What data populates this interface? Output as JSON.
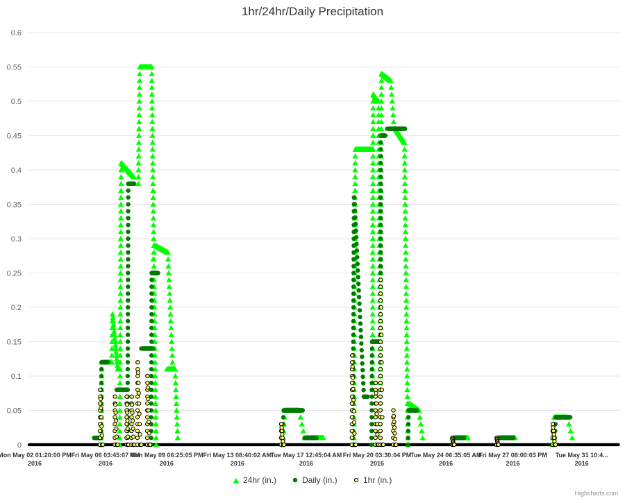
{
  "chart_data": {
    "type": "scatter",
    "title": "1hr/24hr/Daily Precipitation",
    "xlabel": "",
    "ylabel": "",
    "ylim": [
      0,
      0.6
    ],
    "y_ticks": [
      "0",
      "0.05",
      "0.1",
      "0.15",
      "0.2",
      "0.25",
      "0.3",
      "0.35",
      "0.4",
      "0.45",
      "0.5",
      "0.55",
      "0.6"
    ],
    "x_range": [
      0,
      30
    ],
    "x_ticks": [
      {
        "day": 0.0,
        "line1": "Mon May 02 01:20:00 PM",
        "line2": "2016"
      },
      {
        "day": 3.6,
        "line1": "Fri May 06 03:45:07 AM",
        "line2": "2016"
      },
      {
        "day": 6.7,
        "line1": "Mon May 09 06:25:05 PM",
        "line2": "2016"
      },
      {
        "day": 10.3,
        "line1": "Fri May 13 08:40:02 AM",
        "line2": "2016"
      },
      {
        "day": 13.8,
        "line1": "Tue May 17 12:45:04 AM",
        "line2": "2016"
      },
      {
        "day": 17.4,
        "line1": "Fri May 20 03:30:04 PM",
        "line2": "2016"
      },
      {
        "day": 20.9,
        "line1": "Tue May 24 06:35:05 AM",
        "line2": "2016"
      },
      {
        "day": 24.3,
        "line1": "Fri May 27 08:00:03 PM",
        "line2": "2016"
      },
      {
        "day": 27.8,
        "line1": "Tue May 31 10:4...",
        "line2": "2016"
      }
    ],
    "grid": true,
    "legend_position": "bottom-center",
    "series": [
      {
        "name": "24hr (in.)",
        "marker": "triangle",
        "color": "#00ff00",
        "segments": [
          {
            "x0": 3.65,
            "x1": 4.2,
            "y0": 0.0,
            "peak": 0.12,
            "plateau": 0.12,
            "end": 0.12
          },
          {
            "x0": 4.2,
            "x1": 4.6,
            "y0": 0.12,
            "peak": 0.19,
            "plateau": 0.11,
            "end": 0.11
          },
          {
            "x0": 4.6,
            "x1": 5.55,
            "y0": 0.0,
            "peak": 0.41,
            "plateau": 0.39,
            "end": 0.38
          },
          {
            "x0": 5.55,
            "x1": 6.45,
            "y0": 0.38,
            "peak": 0.55,
            "plateau": 0.55,
            "end": 0.0
          },
          {
            "x0": 6.3,
            "x1": 7.3,
            "y0": 0.27,
            "peak": 0.29,
            "plateau": 0.28,
            "end": 0.11
          },
          {
            "x0": 7.0,
            "x1": 7.55,
            "y0": 0.11,
            "peak": 0.11,
            "plateau": 0.11,
            "end": 0.01
          },
          {
            "x0": 12.9,
            "x1": 14.0,
            "y0": 0.0,
            "peak": 0.05,
            "plateau": 0.05,
            "end": 0.01
          },
          {
            "x0": 14.0,
            "x1": 14.95,
            "y0": 0.01,
            "peak": 0.01,
            "plateau": 0.01,
            "end": 0.01
          },
          {
            "x0": 16.5,
            "x1": 17.45,
            "y0": 0.0,
            "peak": 0.43,
            "plateau": 0.43,
            "end": 0.43
          },
          {
            "x0": 17.45,
            "x1": 17.85,
            "y0": 0.08,
            "peak": 0.51,
            "plateau": 0.5,
            "end": 0.08
          },
          {
            "x0": 17.85,
            "x1": 18.55,
            "y0": 0.1,
            "peak": 0.54,
            "plateau": 0.53,
            "end": 0.46
          },
          {
            "x0": 18.55,
            "x1": 19.25,
            "y0": 0.46,
            "peak": 0.46,
            "plateau": 0.44,
            "end": 0.0
          },
          {
            "x0": 19.25,
            "x1": 20.0,
            "y0": 0.06,
            "peak": 0.06,
            "plateau": 0.05,
            "end": 0.01
          },
          {
            "x0": 21.5,
            "x1": 22.3,
            "y0": 0.01,
            "peak": 0.01,
            "plateau": 0.01,
            "end": 0.01
          },
          {
            "x0": 23.8,
            "x1": 24.7,
            "y0": 0.01,
            "peak": 0.01,
            "plateau": 0.01,
            "end": 0.01
          },
          {
            "x0": 26.6,
            "x1": 27.6,
            "y0": 0.0,
            "peak": 0.04,
            "plateau": 0.04,
            "end": 0.01
          }
        ]
      },
      {
        "name": "Daily (in.)",
        "marker": "circle",
        "color": "#007a00",
        "segments": [
          {
            "x0": 3.3,
            "x1": 3.65,
            "y0": 0.01,
            "peak": 0.01,
            "plateau": 0.01,
            "end": 0.01
          },
          {
            "x0": 3.65,
            "x1": 4.0,
            "y0": 0.0,
            "peak": 0.12,
            "plateau": 0.12,
            "end": 0.12
          },
          {
            "x0": 4.45,
            "x1": 5.0,
            "y0": 0.08,
            "peak": 0.08,
            "plateau": 0.08,
            "end": 0.08
          },
          {
            "x0": 5.0,
            "x1": 5.45,
            "y0": 0.0,
            "peak": 0.38,
            "plateau": 0.38,
            "end": 0.39
          },
          {
            "x0": 5.7,
            "x1": 6.3,
            "y0": 0.14,
            "peak": 0.14,
            "plateau": 0.14,
            "end": 0.14
          },
          {
            "x0": 6.2,
            "x1": 6.55,
            "y0": 0.0,
            "peak": 0.25,
            "plateau": 0.25,
            "end": 0.25
          },
          {
            "x0": 12.85,
            "x1": 13.9,
            "y0": 0.0,
            "peak": 0.05,
            "plateau": 0.05,
            "end": 0.05
          },
          {
            "x0": 14.0,
            "x1": 14.6,
            "y0": 0.01,
            "peak": 0.01,
            "plateau": 0.01,
            "end": 0.01
          },
          {
            "x0": 16.45,
            "x1": 17.2,
            "y0": 0.0,
            "peak": 0.36,
            "plateau": 0.07,
            "end": 0.07
          },
          {
            "x0": 17.4,
            "x1": 17.8,
            "y0": 0.0,
            "peak": 0.15,
            "plateau": 0.15,
            "end": 0.15
          },
          {
            "x0": 17.85,
            "x1": 18.1,
            "y0": 0.0,
            "peak": 0.45,
            "plateau": 0.45,
            "end": 0.45
          },
          {
            "x0": 18.2,
            "x1": 19.1,
            "y0": 0.46,
            "peak": 0.46,
            "plateau": 0.46,
            "end": 0.46
          },
          {
            "x0": 19.25,
            "x1": 19.7,
            "y0": 0.0,
            "peak": 0.05,
            "plateau": 0.05,
            "end": 0.05
          },
          {
            "x0": 21.6,
            "x1": 22.1,
            "y0": 0.01,
            "peak": 0.01,
            "plateau": 0.01,
            "end": 0.01
          },
          {
            "x0": 23.9,
            "x1": 24.6,
            "y0": 0.01,
            "peak": 0.01,
            "plateau": 0.01,
            "end": 0.01
          },
          {
            "x0": 26.7,
            "x1": 27.5,
            "y0": 0.0,
            "peak": 0.04,
            "plateau": 0.04,
            "end": 0.04
          }
        ]
      },
      {
        "name": "1hr (in.)",
        "marker": "circle-outline",
        "color": "#ffff66",
        "segments": [
          {
            "x0": 3.6,
            "x1": 3.75,
            "y0": 0.0,
            "peak": 0.08,
            "plateau": 0.0,
            "end": 0.0
          },
          {
            "x0": 4.35,
            "x1": 4.5,
            "y0": 0.0,
            "peak": 0.07,
            "plateau": 0.0,
            "end": 0.0
          },
          {
            "x0": 4.95,
            "x1": 5.05,
            "y0": 0.0,
            "peak": 0.07,
            "plateau": 0.0,
            "end": 0.0
          },
          {
            "x0": 5.2,
            "x1": 5.35,
            "y0": 0.0,
            "peak": 0.07,
            "plateau": 0.0,
            "end": 0.0
          },
          {
            "x0": 5.5,
            "x1": 5.7,
            "y0": 0.0,
            "peak": 0.12,
            "plateau": 0.0,
            "end": 0.0
          },
          {
            "x0": 6.0,
            "x1": 6.15,
            "y0": 0.0,
            "peak": 0.1,
            "plateau": 0.0,
            "end": 0.0
          },
          {
            "x0": 12.8,
            "x1": 12.95,
            "y0": 0.0,
            "peak": 0.03,
            "plateau": 0.0,
            "end": 0.0
          },
          {
            "x0": 16.4,
            "x1": 16.6,
            "y0": 0.0,
            "peak": 0.13,
            "plateau": 0.0,
            "end": 0.0
          },
          {
            "x0": 17.6,
            "x1": 17.75,
            "y0": 0.0,
            "peak": 0.09,
            "plateau": 0.0,
            "end": 0.0
          },
          {
            "x0": 17.85,
            "x1": 18.0,
            "y0": 0.0,
            "peak": 0.24,
            "plateau": 0.0,
            "end": 0.0
          },
          {
            "x0": 18.5,
            "x1": 18.65,
            "y0": 0.0,
            "peak": 0.05,
            "plateau": 0.0,
            "end": 0.0
          },
          {
            "x0": 21.5,
            "x1": 21.6,
            "y0": 0.0,
            "peak": 0.01,
            "plateau": 0.0,
            "end": 0.0
          },
          {
            "x0": 23.75,
            "x1": 23.85,
            "y0": 0.0,
            "peak": 0.01,
            "plateau": 0.0,
            "end": 0.0
          },
          {
            "x0": 26.6,
            "x1": 26.75,
            "y0": 0.0,
            "peak": 0.03,
            "plateau": 0.0,
            "end": 0.0
          }
        ]
      }
    ]
  },
  "credits": "Highcharts.com"
}
